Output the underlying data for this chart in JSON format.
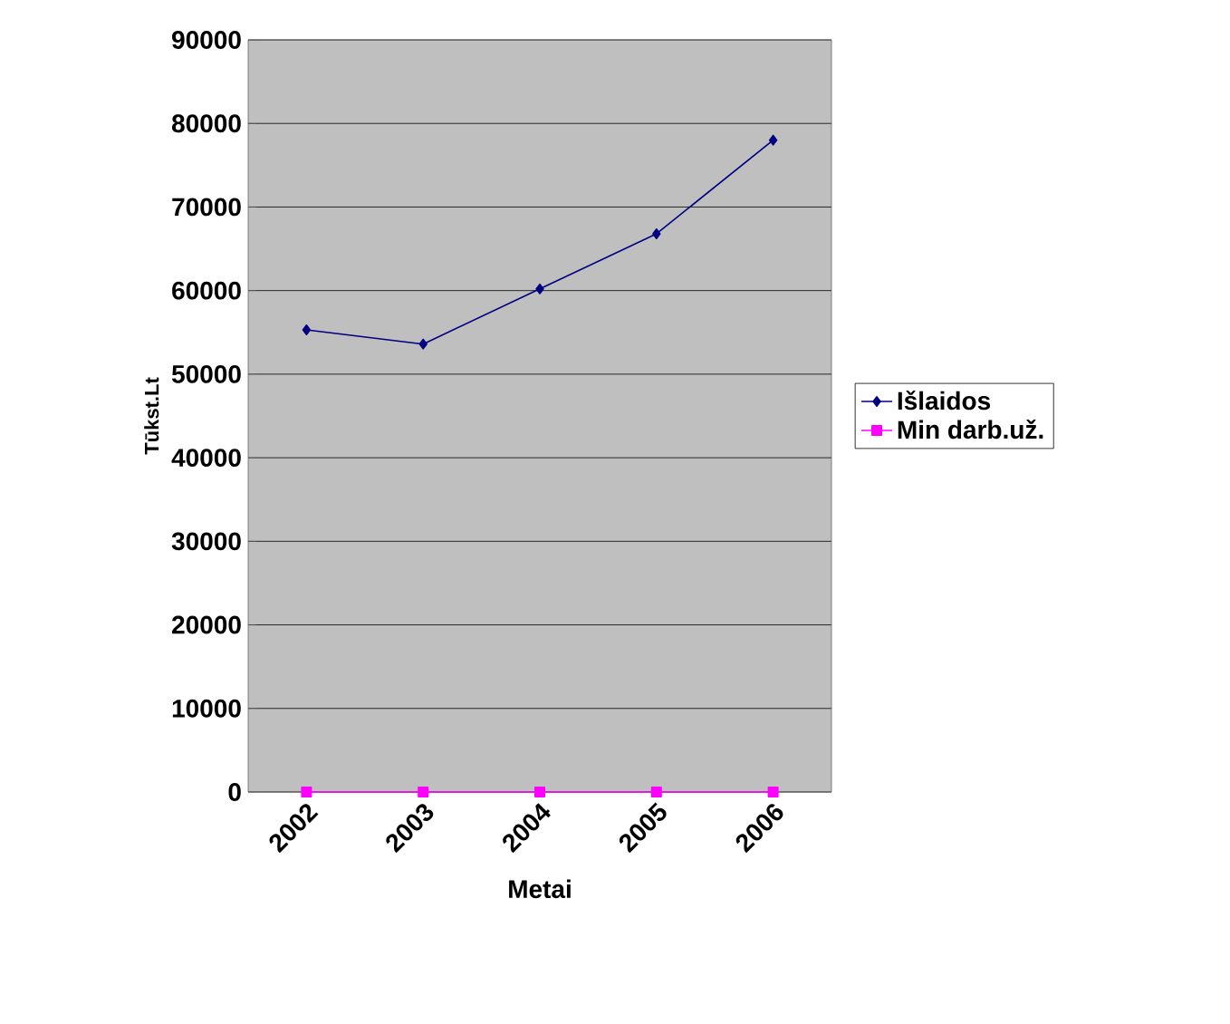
{
  "chart_data": {
    "type": "line",
    "xlabel": "Metai",
    "ylabel": "Tūkst.Lt",
    "categories": [
      "2002",
      "2003",
      "2004",
      "2005",
      "2006"
    ],
    "series": [
      {
        "name": "Išlaidos",
        "color": "#000080",
        "marker": "diamond",
        "values": [
          55300,
          53600,
          60200,
          66800,
          78000
        ]
      },
      {
        "name": "Min darb.už.",
        "color": "#ff00ff",
        "marker": "square",
        "values": [
          0,
          0,
          0,
          0,
          0
        ]
      }
    ],
    "ylim": [
      0,
      90000
    ],
    "yticks": [
      0,
      10000,
      20000,
      30000,
      40000,
      50000,
      60000,
      70000,
      80000,
      90000
    ],
    "grid": "y",
    "legend": "right"
  }
}
